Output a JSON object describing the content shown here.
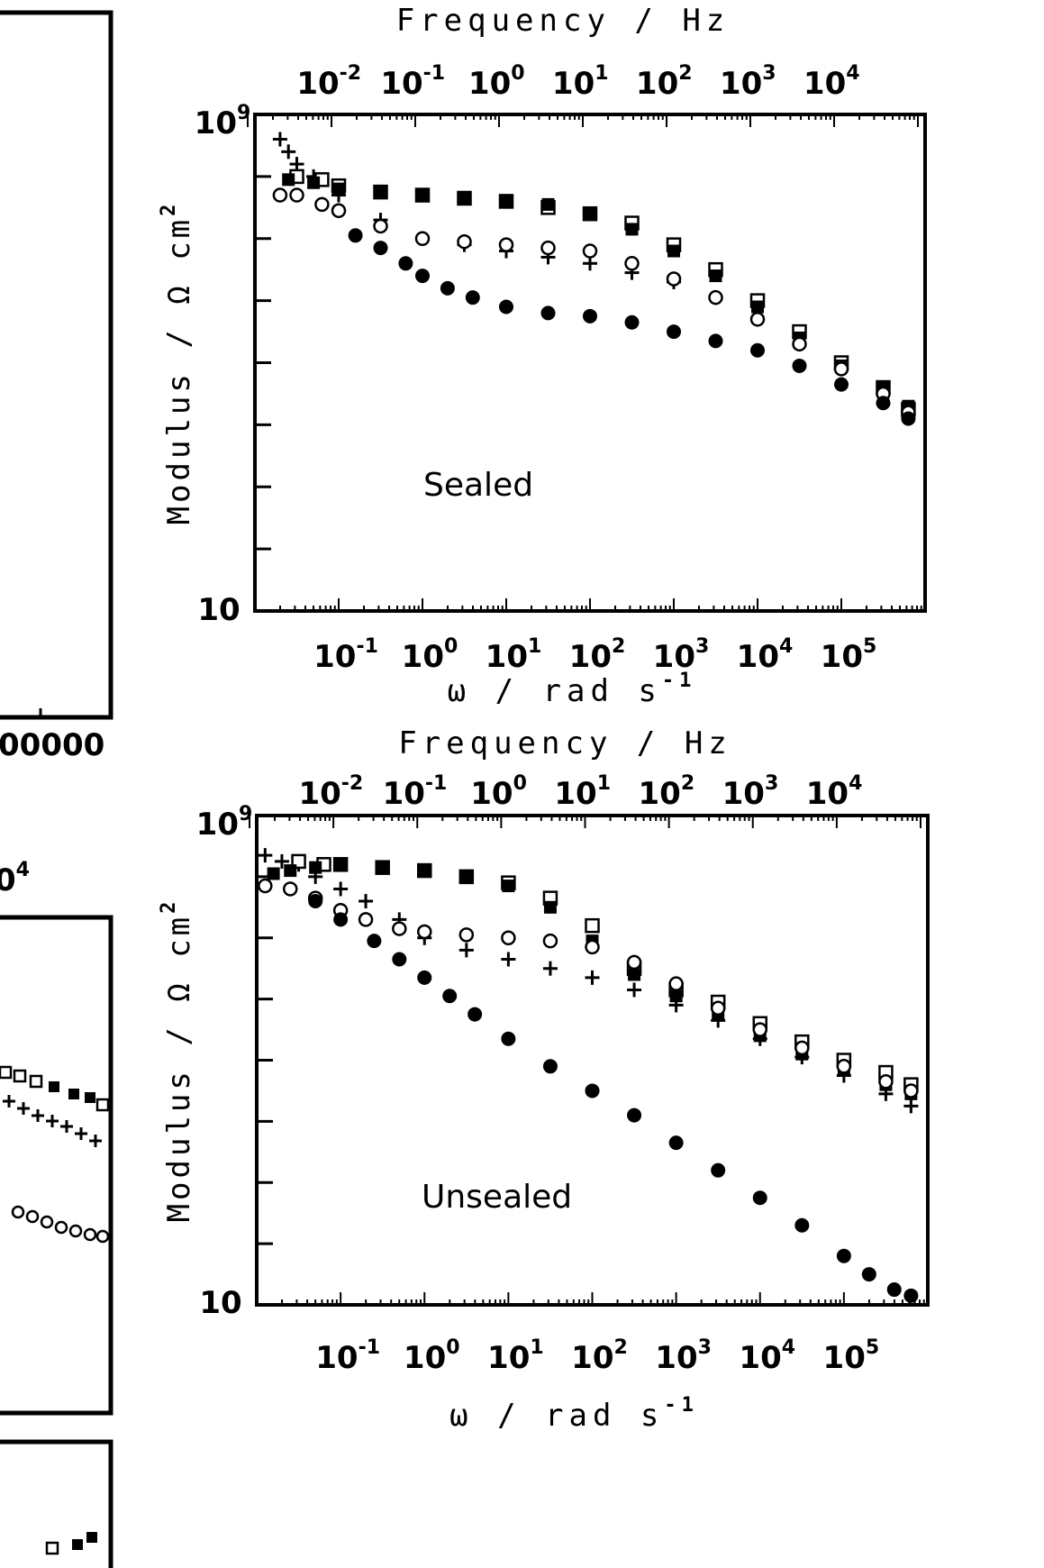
{
  "chart_data": [
    {
      "type": "scatter",
      "annotation": "Sealed",
      "xlabel": "ω / rad s",
      "xlabel_sup": "-1",
      "ylabel": "Modulus / Ω cm",
      "ylabel_sup": "2",
      "top_axis_label": "Frequency / Hz",
      "y_scale": "log",
      "x_scale": "log",
      "ylim": [
        10,
        1000000000
      ],
      "ytick_labels": [
        {
          "base": "10",
          "sup": "9"
        },
        {
          "base": "10",
          "sup": ""
        }
      ],
      "xlim": [
        0.01,
        1000000
      ],
      "xtick_labels": [
        {
          "base": "10",
          "sup": "-1"
        },
        {
          "base": "10",
          "sup": "0"
        },
        {
          "base": "10",
          "sup": "1"
        },
        {
          "base": "10",
          "sup": "2"
        },
        {
          "base": "10",
          "sup": "3"
        },
        {
          "base": "10",
          "sup": "4"
        },
        {
          "base": "10",
          "sup": "5"
        }
      ],
      "top_tick_labels": [
        {
          "base": "10",
          "sup": "-2"
        },
        {
          "base": "10",
          "sup": "-1"
        },
        {
          "base": "10",
          "sup": "0"
        },
        {
          "base": "10",
          "sup": "1"
        },
        {
          "base": "10",
          "sup": "2"
        },
        {
          "base": "10",
          "sup": "3"
        },
        {
          "base": "10",
          "sup": "4"
        }
      ],
      "series": [
        {
          "marker": "plus",
          "logx": [
            -1.7,
            -1.6,
            -1.5,
            -1.3,
            -1.0,
            -0.5,
            0,
            0.5,
            1,
            1.5,
            2,
            2.5,
            3,
            3.5,
            4,
            4.5,
            5,
            5.5,
            5.8
          ],
          "logy": [
            8.6,
            8.4,
            8.2,
            8.0,
            7.7,
            7.3,
            7.0,
            6.9,
            6.8,
            6.7,
            6.6,
            6.45,
            6.3,
            6.05,
            5.7,
            5.3,
            4.9,
            4.5,
            4.2
          ]
        },
        {
          "marker": "open-square",
          "logx": [
            -1.5,
            -1.2,
            -1.0,
            -0.5,
            0,
            0.5,
            1,
            1.5,
            2,
            2.5,
            3,
            3.5,
            4,
            4.5,
            5,
            5.5,
            5.8
          ],
          "logy": [
            8.0,
            7.95,
            7.85,
            7.75,
            7.7,
            7.65,
            7.6,
            7.5,
            7.4,
            7.25,
            6.9,
            6.5,
            6.0,
            5.5,
            5.0,
            4.6,
            4.25
          ]
        },
        {
          "marker": "filled-square",
          "logx": [
            -1.6,
            -1.3,
            -1.0,
            -0.5,
            0,
            0.5,
            1,
            1.5,
            2,
            2.5,
            3,
            3.5,
            4,
            4.5,
            5,
            5.5,
            5.8
          ],
          "logy": [
            7.95,
            7.9,
            7.8,
            7.75,
            7.7,
            7.65,
            7.6,
            7.55,
            7.4,
            7.15,
            6.8,
            6.4,
            5.9,
            5.4,
            4.95,
            4.6,
            4.3
          ]
        },
        {
          "marker": "open-circle",
          "logx": [
            -1.7,
            -1.5,
            -1.2,
            -1.0,
            -0.5,
            0,
            0.5,
            1,
            1.5,
            2,
            2.5,
            3,
            3.5,
            4,
            4.5,
            5,
            5.5,
            5.8
          ],
          "logy": [
            7.7,
            7.7,
            7.55,
            7.45,
            7.2,
            7.0,
            6.95,
            6.9,
            6.85,
            6.8,
            6.6,
            6.35,
            6.05,
            5.7,
            5.3,
            4.9,
            4.5,
            4.2
          ]
        },
        {
          "marker": "filled-circle",
          "logx": [
            -0.8,
            -0.5,
            -0.2,
            0,
            0.3,
            0.6,
            1,
            1.5,
            2,
            2.5,
            3,
            3.5,
            4,
            4.5,
            5,
            5.5,
            5.8
          ],
          "logy": [
            7.05,
            6.85,
            6.6,
            6.4,
            6.2,
            6.05,
            5.9,
            5.8,
            5.75,
            5.65,
            5.5,
            5.35,
            5.2,
            4.95,
            4.65,
            4.35,
            4.1
          ]
        }
      ]
    },
    {
      "type": "scatter",
      "annotation": "Unsealed",
      "xlabel": "ω / rad s",
      "xlabel_sup": "-1",
      "ylabel": "Modulus / Ω cm",
      "ylabel_sup": "2",
      "top_axis_label": "Frequency / Hz",
      "y_scale": "log",
      "x_scale": "log",
      "ylim": [
        10,
        1000000000
      ],
      "ytick_labels": [
        {
          "base": "10",
          "sup": "9"
        },
        {
          "base": "10",
          "sup": ""
        }
      ],
      "xlim": [
        0.01,
        1000000
      ],
      "xtick_labels": [
        {
          "base": "10",
          "sup": "-1"
        },
        {
          "base": "10",
          "sup": "0"
        },
        {
          "base": "10",
          "sup": "1"
        },
        {
          "base": "10",
          "sup": "2"
        },
        {
          "base": "10",
          "sup": "3"
        },
        {
          "base": "10",
          "sup": "4"
        },
        {
          "base": "10",
          "sup": "5"
        }
      ],
      "top_tick_labels": [
        {
          "base": "10",
          "sup": "-2"
        },
        {
          "base": "10",
          "sup": "-1"
        },
        {
          "base": "10",
          "sup": "0"
        },
        {
          "base": "10",
          "sup": "1"
        },
        {
          "base": "10",
          "sup": "2"
        },
        {
          "base": "10",
          "sup": "3"
        },
        {
          "base": "10",
          "sup": "4"
        }
      ],
      "series": [
        {
          "marker": "plus",
          "logx": [
            -1.9,
            -1.7,
            -1.5,
            -1.3,
            -1.0,
            -0.7,
            -0.3,
            0,
            0.5,
            1,
            1.5,
            2,
            2.5,
            3,
            3.5,
            4,
            4.5,
            5,
            5.5,
            5.8
          ],
          "logy": [
            8.35,
            8.25,
            8.2,
            8.0,
            7.8,
            7.6,
            7.3,
            7.0,
            6.8,
            6.65,
            6.5,
            6.35,
            6.15,
            5.9,
            5.65,
            5.35,
            5.05,
            4.75,
            4.45,
            4.25
          ]
        },
        {
          "marker": "open-square",
          "logx": [
            -1.5,
            -1.2,
            -1.0,
            -0.5,
            0,
            0.5,
            1,
            1.5,
            2,
            2.5,
            3,
            3.5,
            4,
            4.5,
            5,
            5.5,
            5.8
          ],
          "logy": [
            8.25,
            8.2,
            8.2,
            8.15,
            8.1,
            8.0,
            7.9,
            7.65,
            7.2,
            6.5,
            6.15,
            5.95,
            5.6,
            5.3,
            5.0,
            4.8,
            4.6
          ]
        },
        {
          "marker": "filled-square",
          "logx": [
            -1.8,
            -1.6,
            -1.3,
            -1.0,
            -0.5,
            0,
            0.5,
            1,
            1.5,
            2,
            2.5,
            3,
            3.5,
            4,
            4.5,
            5,
            5.5,
            5.8
          ],
          "logy": [
            8.05,
            8.1,
            8.15,
            8.2,
            8.15,
            8.1,
            8.0,
            7.85,
            7.5,
            6.95,
            6.4,
            6.05,
            5.75,
            5.4,
            5.1,
            4.85,
            4.6,
            4.45
          ]
        },
        {
          "marker": "open-circle",
          "logx": [
            -1.9,
            -1.6,
            -1.3,
            -1.0,
            -0.7,
            -0.3,
            0,
            0.5,
            1,
            1.5,
            2,
            2.5,
            3,
            3.5,
            4,
            4.5,
            5,
            5.5,
            5.8
          ],
          "logy": [
            7.85,
            7.8,
            7.65,
            7.45,
            7.3,
            7.15,
            7.1,
            7.05,
            7.0,
            6.95,
            6.85,
            6.6,
            6.25,
            5.85,
            5.5,
            5.2,
            4.9,
            4.65,
            4.5
          ]
        },
        {
          "marker": "filled-circle",
          "logx": [
            -1.3,
            -1.0,
            -0.6,
            -0.3,
            0,
            0.3,
            0.6,
            1,
            1.5,
            2,
            2.5,
            3,
            3.5,
            4,
            4.5,
            5,
            5.3,
            5.6,
            5.8
          ],
          "logy": [
            7.6,
            7.3,
            6.95,
            6.65,
            6.35,
            6.05,
            5.75,
            5.35,
            4.9,
            4.5,
            4.1,
            3.65,
            3.2,
            2.75,
            2.3,
            1.8,
            1.5,
            1.25,
            1.15
          ]
        }
      ]
    }
  ],
  "left_fragment": {
    "tick_fragment": "00000",
    "top_fragment_base": "0",
    "top_fragment_sup": "4"
  }
}
